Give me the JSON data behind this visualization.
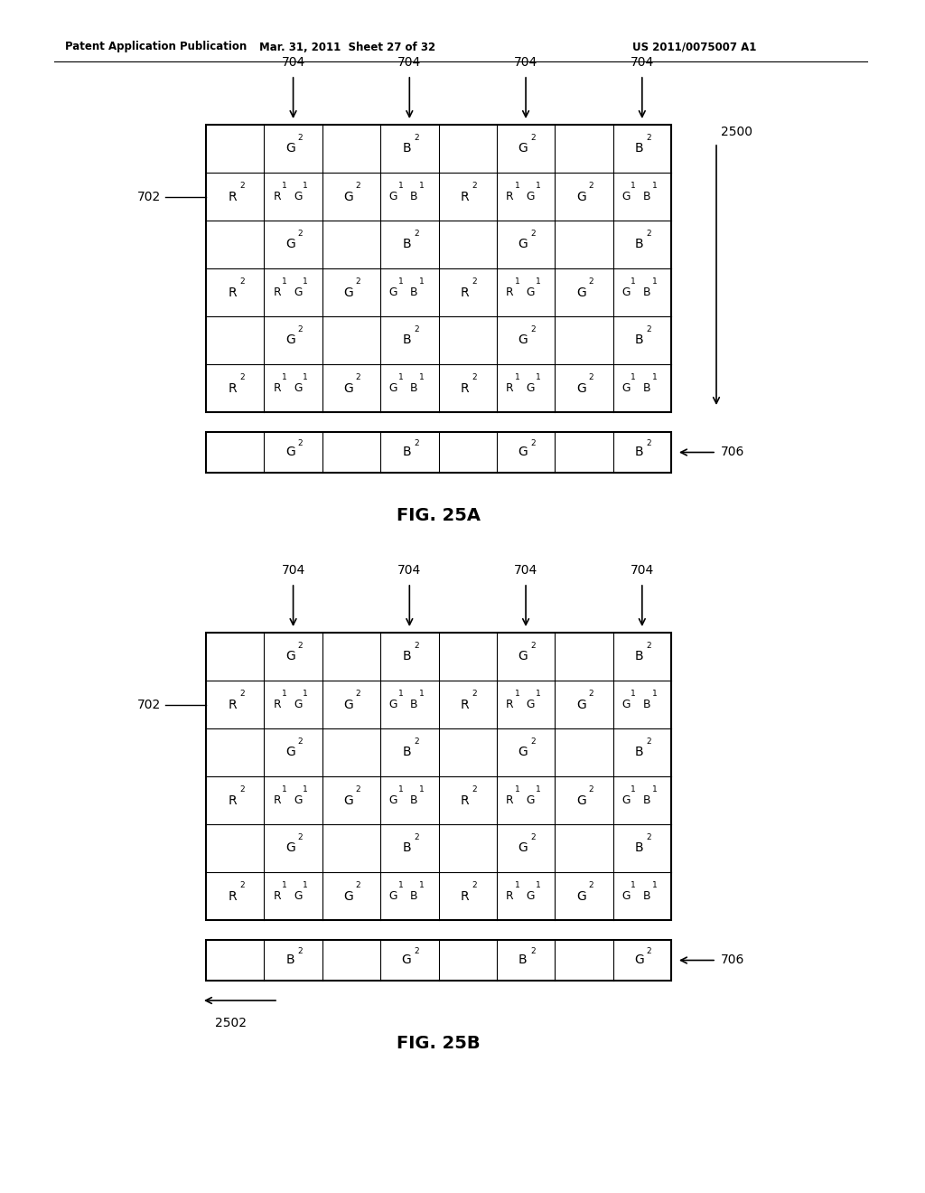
{
  "header_left": "Patent Application Publication",
  "header_mid": "Mar. 31, 2011  Sheet 27 of 32",
  "header_right": "US 2011/0075007 A1",
  "fig_a_label": "FIG. 25A",
  "fig_b_label": "FIG. 25B",
  "fig_a": {
    "cells": [
      [
        "",
        "G2",
        "",
        "B2",
        "",
        "G2",
        "",
        "B2"
      ],
      [
        "R2",
        "R1G1",
        "G2",
        "G1B1",
        "R2",
        "R1G1",
        "G2",
        "G1B1"
      ],
      [
        "",
        "G2",
        "",
        "B2",
        "",
        "G2",
        "",
        "B2"
      ],
      [
        "R2",
        "R1G1",
        "G2",
        "G1B1",
        "R2",
        "R1G1",
        "G2",
        "G1B1"
      ],
      [
        "",
        "G2",
        "",
        "B2",
        "",
        "G2",
        "",
        "B2"
      ],
      [
        "R2",
        "R1G1",
        "G2",
        "G1B1",
        "R2",
        "R1G1",
        "G2",
        "G1B1"
      ]
    ],
    "register_cells": [
      "",
      "G2",
      "",
      "B2",
      "",
      "G2",
      "",
      "B2"
    ],
    "arrow_label": "704",
    "left_label": "702",
    "right_label": "2500",
    "register_label": "706"
  },
  "fig_b": {
    "cells": [
      [
        "",
        "G2",
        "",
        "B2",
        "",
        "G2",
        "",
        "B2"
      ],
      [
        "R2",
        "R1G1",
        "G2",
        "G1B1",
        "R2",
        "R1G1",
        "G2",
        "G1B1"
      ],
      [
        "",
        "G2",
        "",
        "B2",
        "",
        "G2",
        "",
        "B2"
      ],
      [
        "R2",
        "R1G1",
        "G2",
        "G1B1",
        "R2",
        "R1G1",
        "G2",
        "G1B1"
      ],
      [
        "",
        "G2",
        "",
        "B2",
        "",
        "G2",
        "",
        "B2"
      ],
      [
        "R2",
        "R1G1",
        "G2",
        "G1B1",
        "R2",
        "R1G1",
        "G2",
        "G1B1"
      ]
    ],
    "register_cells": [
      "",
      "B2",
      "",
      "G2",
      "",
      "B2",
      "",
      "G2"
    ],
    "arrow_label": "704",
    "left_label": "702",
    "bottom_label": "2502",
    "register_label": "706"
  },
  "background_color": "#ffffff",
  "line_color": "#000000",
  "text_color": "#000000"
}
